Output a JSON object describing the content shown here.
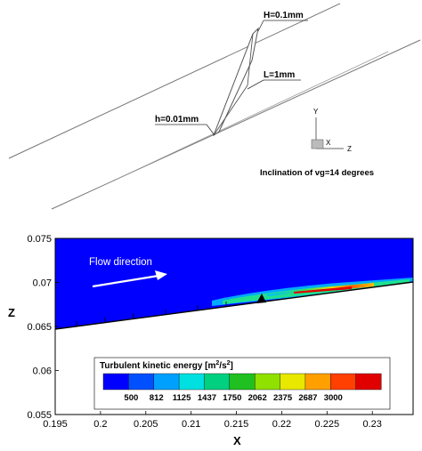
{
  "schematic": {
    "label_H": "H=0.1mm",
    "label_L": "L=1mm",
    "label_h": "h=0.01mm",
    "triad_y": "Y",
    "triad_x": "X",
    "triad_z": "Z",
    "caption": "Inclination of vg=14 degrees"
  },
  "contour": {
    "flow_label": "Flow direction",
    "axis_x_label": "X",
    "axis_y_label": "Z",
    "legend_title_prefix": "Turbulent kinetic energy [m",
    "legend_title_sup1": "2",
    "legend_title_mid": "/s",
    "legend_title_sup2": "2",
    "legend_title_suffix": "]",
    "x_ticks": [
      "0.195",
      "0.2",
      "0.205",
      "0.21",
      "0.215",
      "0.22",
      "0.225",
      "0.23"
    ],
    "y_ticks": [
      "0.055",
      "0.06",
      "0.065",
      "0.07",
      "0.075"
    ],
    "legend_levels": [
      "500",
      "812",
      "1125",
      "1437",
      "1750",
      "2062",
      "2375",
      "2687",
      "3000"
    ],
    "legend_colors": [
      "#0000ff",
      "#0050ff",
      "#00a0ff",
      "#00e0e0",
      "#00d080",
      "#20c020",
      "#90e000",
      "#e8e800",
      "#ffa000",
      "#ff4000",
      "#e00000"
    ],
    "background_color": "#0000ff"
  },
  "chart_data": {
    "type": "heatmap",
    "title": "",
    "xlabel": "X",
    "ylabel": "Z",
    "xlim": [
      0.195,
      0.2345
    ],
    "ylim": [
      0.055,
      0.075
    ],
    "x_ticks": [
      0.195,
      0.2,
      0.205,
      0.21,
      0.215,
      0.22,
      0.225,
      0.23
    ],
    "y_ticks": [
      0.055,
      0.06,
      0.065,
      0.07,
      0.075
    ],
    "colorbar": {
      "title": "Turbulent kinetic energy [m2/s2]",
      "levels": [
        500,
        812,
        1125,
        1437,
        1750,
        2062,
        2375,
        2687,
        3000
      ]
    },
    "surface_line": [
      [
        0.195,
        0.0649
      ],
      [
        0.2345,
        0.0701
      ]
    ],
    "annotations": [
      "Flow direction"
    ]
  }
}
